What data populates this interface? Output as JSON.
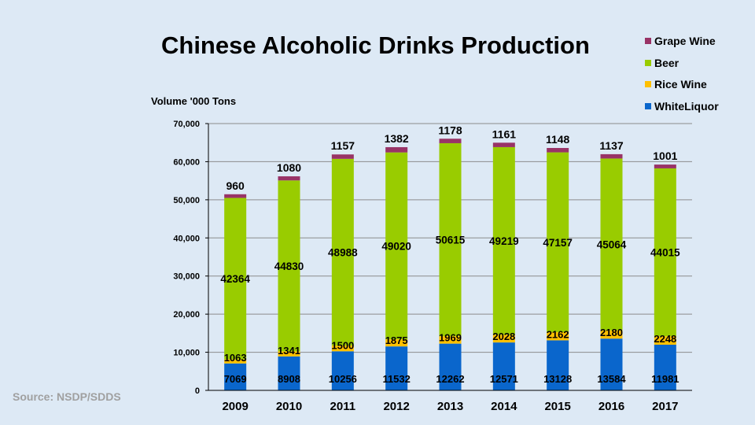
{
  "chart_data": {
    "type": "bar",
    "stacked": true,
    "title": "Chinese Alcoholic Drinks Production",
    "ylabel": "Volume '000 Tons",
    "xlabel": "",
    "ylim": [
      0,
      70000
    ],
    "yticks": [
      0,
      10000,
      20000,
      30000,
      40000,
      50000,
      60000,
      70000
    ],
    "ytick_labels": [
      "0",
      "10,000",
      "20,000",
      "30,000",
      "40,000",
      "50,000",
      "60,000",
      "70,000"
    ],
    "grid": true,
    "legend_position": "top-right",
    "categories": [
      "2009",
      "2010",
      "2011",
      "2012",
      "2013",
      "2014",
      "2015",
      "2016",
      "2017"
    ],
    "series": [
      {
        "name": "WhiteLiquor",
        "color": "#0a66cc",
        "values": [
          7069,
          8908,
          10256,
          11532,
          12262,
          12571,
          13128,
          13584,
          11981
        ]
      },
      {
        "name": "Rice Wine",
        "color": "#ffc000",
        "values": [
          1063,
          1341,
          1500,
          1875,
          1969,
          2028,
          2162,
          2180,
          2248
        ]
      },
      {
        "name": "Beer",
        "color": "#99cc00",
        "values": [
          42364,
          44830,
          48988,
          49020,
          50615,
          49219,
          47157,
          45064,
          44015
        ]
      },
      {
        "name": "Grape Wine",
        "color": "#993366",
        "values": [
          960,
          1080,
          1157,
          1382,
          1178,
          1161,
          1148,
          1137,
          1001
        ]
      }
    ],
    "legend_order": [
      "Grape Wine",
      "Beer",
      "Rice Wine",
      "WhiteLiquor"
    ]
  },
  "source": "Source: NSDP/SDDS"
}
